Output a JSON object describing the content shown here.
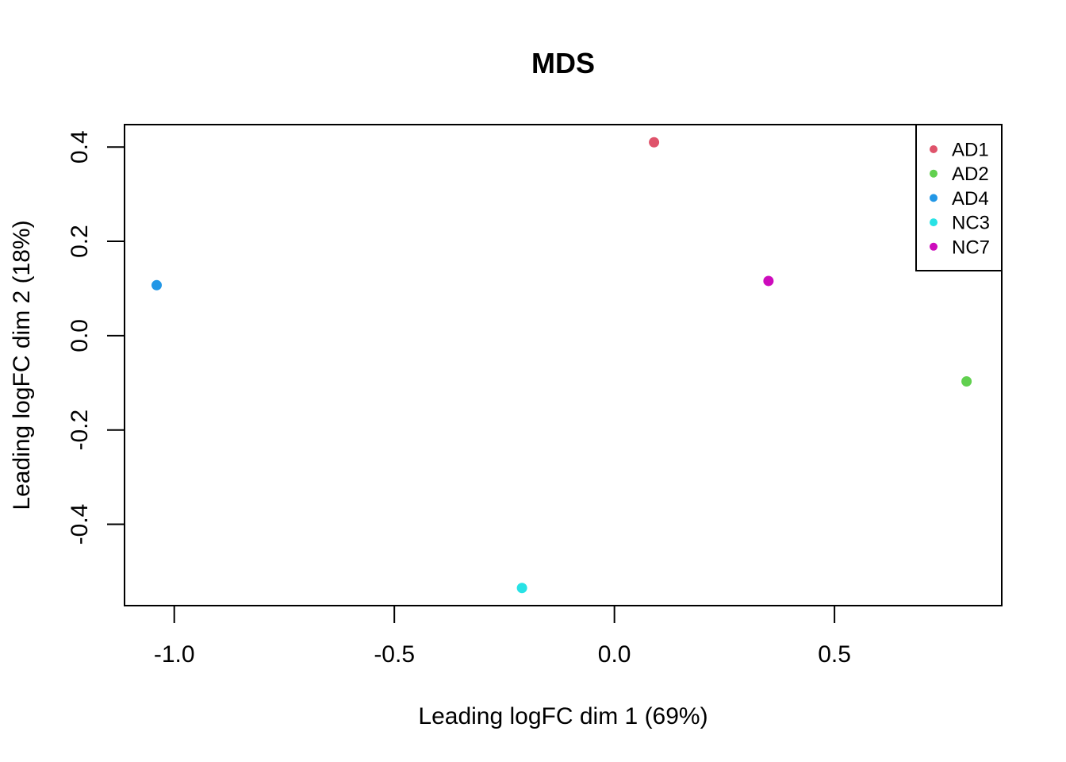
{
  "chart_data": {
    "type": "scatter",
    "title": "MDS",
    "xlabel": "Leading logFC dim 1 (69%)",
    "ylabel": "Leading logFC dim 2 (18%)",
    "xlim": [
      -1.113,
      0.88
    ],
    "ylim": [
      -0.5725,
      0.4475
    ],
    "xticks": [
      -1.0,
      -0.5,
      0.0,
      0.5
    ],
    "xtick_labels": [
      "-1.0",
      "-0.5",
      "0.0",
      "0.5"
    ],
    "yticks": [
      0.4,
      0.2,
      0.0,
      -0.2,
      -0.4
    ],
    "ytick_labels": [
      "0.4",
      "0.2",
      "0.0",
      "-0.2",
      "-0.4"
    ],
    "grid": false,
    "legend_position": "top-right",
    "series": [
      {
        "name": "AD1",
        "color": "#DF536B",
        "points": [
          {
            "x": 0.09,
            "y": 0.41
          }
        ]
      },
      {
        "name": "AD2",
        "color": "#61D04F",
        "points": [
          {
            "x": 0.8,
            "y": -0.097
          }
        ]
      },
      {
        "name": "AD4",
        "color": "#2297E6",
        "points": [
          {
            "x": -1.04,
            "y": 0.107
          }
        ]
      },
      {
        "name": "NC3",
        "color": "#28E2E5",
        "points": [
          {
            "x": -0.21,
            "y": -0.535
          }
        ]
      },
      {
        "name": "NC7",
        "color": "#CD0BBC",
        "points": [
          {
            "x": 0.35,
            "y": 0.116
          }
        ]
      }
    ]
  }
}
